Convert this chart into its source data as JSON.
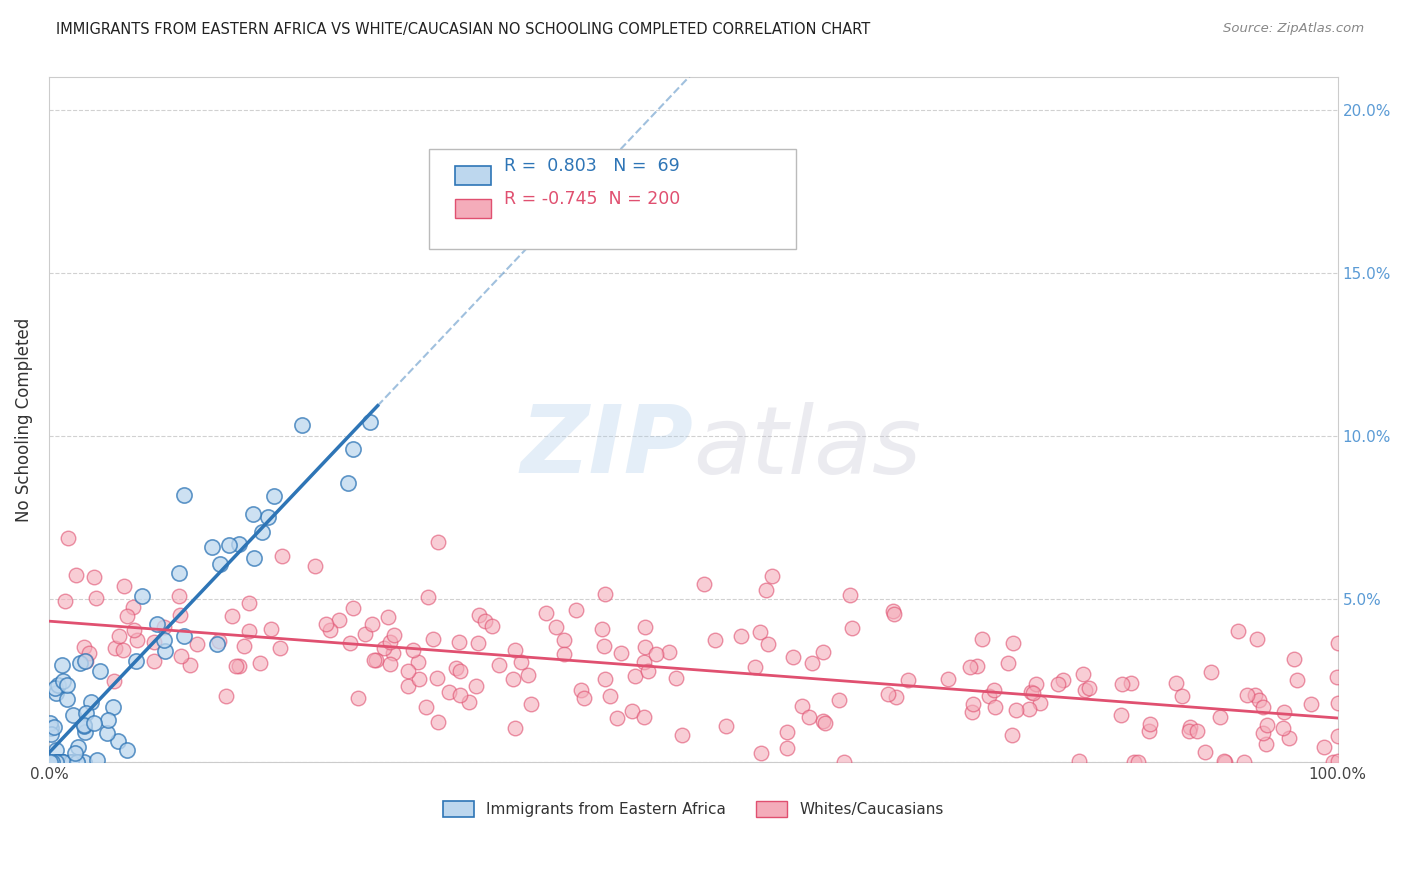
{
  "title": "IMMIGRANTS FROM EASTERN AFRICA VS WHITE/CAUCASIAN NO SCHOOLING COMPLETED CORRELATION CHART",
  "source": "Source: ZipAtlas.com",
  "ylabel": "No Schooling Completed",
  "xlim": [
    0,
    1.0
  ],
  "ylim": [
    0,
    0.21
  ],
  "xticks": [
    0.0,
    0.1,
    0.2,
    0.3,
    0.4,
    0.5,
    0.6,
    0.7,
    0.8,
    0.9,
    1.0
  ],
  "xtick_labels": [
    "0.0%",
    "",
    "",
    "",
    "",
    "",
    "",
    "",
    "",
    "",
    "100.0%"
  ],
  "yticks": [
    0.0,
    0.05,
    0.1,
    0.15,
    0.2
  ],
  "ytick_labels_right": [
    "",
    "5.0%",
    "10.0%",
    "15.0%",
    "20.0%"
  ],
  "blue_R": 0.803,
  "blue_N": 69,
  "pink_R": -0.745,
  "pink_N": 200,
  "blue_fill_color": "#BDD7EE",
  "blue_edge_color": "#2E75B6",
  "pink_fill_color": "#F4ACBA",
  "pink_edge_color": "#E05070",
  "blue_line_color": "#2E75B6",
  "pink_line_color": "#E05070",
  "right_tick_color": "#5B9BD5",
  "background_color": "#FFFFFF",
  "grid_color": "#CCCCCC",
  "legend_label_blue": "Immigrants from Eastern Africa",
  "legend_label_pink": "Whites/Caucasians",
  "blue_seed": 42,
  "pink_seed": 77,
  "dot_size_blue": 120,
  "dot_size_pink": 110
}
